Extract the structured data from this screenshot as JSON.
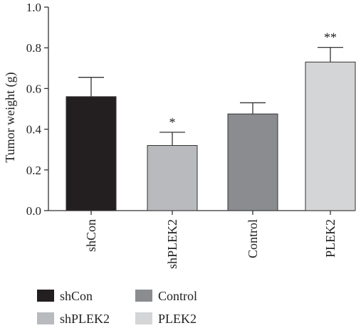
{
  "chart_data": {
    "type": "bar",
    "ylabel": "Tumor weight (g)",
    "ylim": [
      0,
      1.0
    ],
    "yticks": [
      "0.0",
      "0.2",
      "0.4",
      "0.6",
      "0.8",
      "1.0"
    ],
    "categories": [
      "shCon",
      "shPLEK2",
      "Control",
      "PLEK2"
    ],
    "values": [
      0.56,
      0.32,
      0.475,
      0.73
    ],
    "errors": [
      0.095,
      0.065,
      0.055,
      0.072
    ],
    "significance": [
      "",
      "*",
      "",
      "**"
    ],
    "colors": [
      "#231f20",
      "#b8babe",
      "#8a8c90",
      "#d4d5d7"
    ],
    "grid": false,
    "legend": {
      "placement": "bottom",
      "items": [
        {
          "label": "shCon",
          "color": "#231f20"
        },
        {
          "label": "Control",
          "color": "#8a8c90"
        },
        {
          "label": "shPLEK2",
          "color": "#b8babe"
        },
        {
          "label": "PLEK2",
          "color": "#d4d5d7"
        }
      ]
    }
  }
}
